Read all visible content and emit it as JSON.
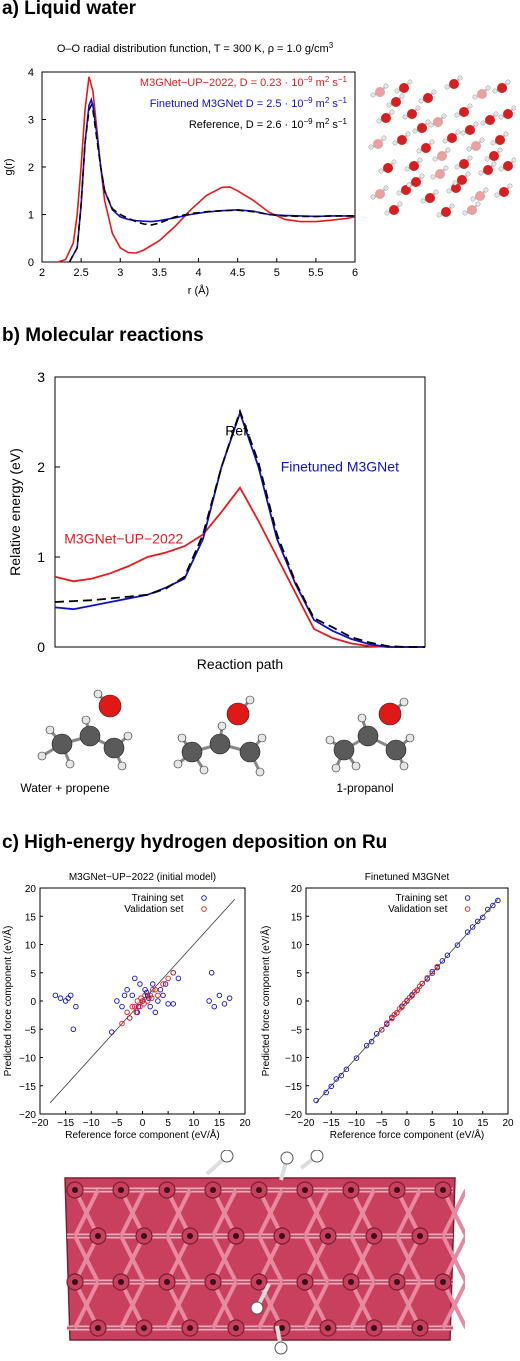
{
  "panels": {
    "a": {
      "heading": "a) Liquid water",
      "title": "O–O radial distribution function, T = 300 K, ρ = 1.0 g/cm",
      "title_sup": "3"
    },
    "b": {
      "heading": "b) Molecular reactions",
      "mol_left": "Water + propene",
      "mol_right": "1-propanol"
    },
    "c": {
      "heading": "c) High-energy hydrogen deposition on Ru"
    }
  },
  "colors": {
    "red": "#e41a1c",
    "blue": "#1010c8",
    "black": "#000000",
    "ru": "#c8405e",
    "ru_dark": "#7a1f33"
  },
  "chart_data": [
    {
      "id": "rdf",
      "type": "line",
      "title": "O–O radial distribution function, T = 300 K, ρ = 1.0 g/cm3",
      "xlabel": "r (Å)",
      "ylabel": "g(r)",
      "xlim": [
        2,
        6
      ],
      "ylim": [
        0,
        4
      ],
      "xticks": [
        "2",
        "2.5",
        "3",
        "3.5",
        "4",
        "4.5",
        "5",
        "5.5",
        "6"
      ],
      "yticks": [
        "0",
        "1",
        "2",
        "3",
        "4"
      ],
      "legend": [
        {
          "pre": "M3GNet−UP−2022, D = 0.23 · 10",
          "sup1": "−9",
          "mid": " m",
          "sup2": "2",
          "post": " s",
          "sup3": "−1",
          "color": "#e41a1c"
        },
        {
          "pre": "Finetuned M3GNet D = 2.5 · 10",
          "sup1": "−9",
          "mid": " m",
          "sup2": "2",
          "post": " s",
          "sup3": "−1",
          "color": "#1010c8"
        },
        {
          "pre": "Reference, D = 2.6 · 10",
          "sup1": "−9",
          "mid": " m",
          "sup2": "2",
          "post": " s",
          "sup3": "−1",
          "color": "#000000"
        }
      ],
      "series": [
        {
          "name": "M3GNet−UP−2022",
          "color": "#e41a1c",
          "dash": false,
          "x": [
            2.2,
            2.3,
            2.4,
            2.45,
            2.5,
            2.55,
            2.6,
            2.65,
            2.7,
            2.75,
            2.8,
            2.9,
            3.0,
            3.1,
            3.2,
            3.3,
            3.5,
            3.7,
            3.9,
            4.1,
            4.3,
            4.4,
            4.5,
            4.7,
            4.9,
            5.1,
            5.3,
            5.5,
            5.7,
            5.9,
            6.0
          ],
          "y": [
            0,
            0.05,
            0.4,
            1.0,
            2.0,
            3.2,
            3.9,
            3.6,
            2.8,
            2.0,
            1.3,
            0.6,
            0.3,
            0.2,
            0.19,
            0.25,
            0.45,
            0.75,
            1.1,
            1.4,
            1.57,
            1.58,
            1.5,
            1.3,
            1.05,
            0.9,
            0.85,
            0.85,
            0.88,
            0.92,
            0.95
          ]
        },
        {
          "name": "Finetuned M3GNet",
          "color": "#1010c8",
          "dash": false,
          "x": [
            2.35,
            2.45,
            2.5,
            2.55,
            2.6,
            2.63,
            2.65,
            2.7,
            2.75,
            2.8,
            2.9,
            3.0,
            3.1,
            3.2,
            3.3,
            3.4,
            3.5,
            3.7,
            3.9,
            4.1,
            4.3,
            4.5,
            4.7,
            4.9,
            5.1,
            5.3,
            5.5,
            5.7,
            5.9,
            6.0
          ],
          "y": [
            0,
            0.3,
            1.2,
            2.5,
            3.3,
            3.42,
            3.3,
            2.7,
            2.0,
            1.5,
            1.1,
            0.95,
            0.9,
            0.87,
            0.86,
            0.85,
            0.87,
            0.93,
            1.0,
            1.05,
            1.08,
            1.1,
            1.07,
            1.0,
            0.98,
            0.97,
            0.96,
            0.97,
            0.97,
            0.97
          ]
        },
        {
          "name": "Reference",
          "color": "#000000",
          "dash": true,
          "x": [
            2.35,
            2.45,
            2.5,
            2.55,
            2.6,
            2.63,
            2.65,
            2.7,
            2.75,
            2.8,
            2.9,
            3.0,
            3.1,
            3.2,
            3.3,
            3.4,
            3.5,
            3.7,
            3.9,
            4.1,
            4.3,
            4.5,
            4.7,
            4.9,
            5.1,
            5.3,
            5.5,
            5.7,
            5.9,
            6.0
          ],
          "y": [
            0,
            0.3,
            1.2,
            2.5,
            3.2,
            3.3,
            3.2,
            2.6,
            2.0,
            1.5,
            1.12,
            1.0,
            0.92,
            0.85,
            0.8,
            0.78,
            0.82,
            0.95,
            1.02,
            1.06,
            1.08,
            1.09,
            1.06,
            1.0,
            0.97,
            0.96,
            0.96,
            0.97,
            0.97,
            0.97
          ]
        }
      ]
    },
    {
      "id": "reaction",
      "type": "line",
      "xlabel": "Reaction path",
      "ylabel": "Relative energy (eV)",
      "xlim": [
        0,
        20
      ],
      "ylim": [
        0,
        3
      ],
      "yticks": [
        "0",
        "1",
        "2",
        "3"
      ],
      "labels": [
        {
          "text": "Ref.",
          "color": "#000000",
          "x": 9.2,
          "y": 2.35
        },
        {
          "text": "Finetuned M3GNet",
          "color": "#1010c8",
          "x": 12.2,
          "y": 1.95
        },
        {
          "text": "M3GNet−UP−2022",
          "color": "#e41a1c",
          "x": 0.5,
          "y": 1.15
        }
      ],
      "series": [
        {
          "name": "M3GNet−UP−2022",
          "color": "#e41a1c",
          "dash": false,
          "x": [
            0,
            1,
            2,
            3,
            4,
            5,
            6,
            7,
            8,
            9,
            10,
            11,
            12,
            13,
            14,
            15,
            16,
            17,
            18,
            19,
            20
          ],
          "y": [
            0.78,
            0.73,
            0.76,
            0.82,
            0.9,
            1.0,
            1.05,
            1.12,
            1.25,
            1.5,
            1.77,
            1.4,
            1.0,
            0.6,
            0.2,
            0.1,
            0.04,
            0.01,
            0,
            0,
            0
          ]
        },
        {
          "name": "Finetuned M3GNet",
          "color": "#1010c8",
          "dash": false,
          "x": [
            0,
            1,
            2,
            3,
            4,
            5,
            6,
            7,
            8,
            9,
            10,
            11,
            12,
            13,
            14,
            15,
            16,
            17,
            18,
            19,
            20
          ],
          "y": [
            0.44,
            0.42,
            0.46,
            0.5,
            0.54,
            0.58,
            0.66,
            0.76,
            1.2,
            2.0,
            2.6,
            2.0,
            1.2,
            0.7,
            0.3,
            0.18,
            0.09,
            0.03,
            0,
            0,
            0
          ]
        },
        {
          "name": "Reference",
          "color": "#000000",
          "dash": true,
          "x": [
            0,
            1,
            2,
            3,
            4,
            5,
            6,
            7,
            8,
            9,
            10,
            11,
            12,
            13,
            14,
            15,
            16,
            17,
            18,
            19,
            20
          ],
          "y": [
            0.5,
            0.51,
            0.52,
            0.54,
            0.56,
            0.58,
            0.65,
            0.78,
            1.25,
            2.0,
            2.62,
            2.05,
            1.25,
            0.72,
            0.32,
            0.22,
            0.11,
            0.05,
            0.01,
            0,
            0
          ]
        }
      ]
    },
    {
      "id": "parity-initial",
      "type": "scatter",
      "title": "M3GNet−UP−2022 (initial model)",
      "xlabel": "Reference force component (eV/Å)",
      "ylabel": "Predicted force component (eV/Å)",
      "xlim": [
        -20,
        20
      ],
      "ylim": [
        -20,
        20
      ],
      "xticks": [
        "−20",
        "−15",
        "−10",
        "−5",
        "0",
        "5",
        "10",
        "15",
        "20"
      ],
      "yticks": [
        "−20",
        "−15",
        "−10",
        "−5",
        "0",
        "5",
        "10",
        "15",
        "20"
      ],
      "legend": [
        "Training set",
        "Validation set"
      ],
      "series": [
        {
          "name": "Training set",
          "color": "#1010c8",
          "x": [
            -17,
            -16,
            -15,
            -14.5,
            -14,
            -13,
            -13.5,
            -5,
            -4,
            -3,
            -2,
            -1,
            -0.5,
            0,
            0.5,
            1,
            1.5,
            2,
            3,
            4,
            5,
            6,
            7,
            -2.5,
            2.5,
            -1.5,
            1.2,
            -0.8,
            0.8,
            3.5,
            -3.5,
            13,
            14,
            15,
            16,
            17,
            13.5,
            6,
            4.5,
            -6
          ],
          "y": [
            1,
            0.5,
            0,
            0.5,
            1,
            -1,
            -5,
            0,
            -1,
            2,
            1,
            -2,
            3,
            0,
            2,
            1,
            -1,
            3,
            0,
            1,
            -0.5,
            5,
            4,
            -3,
            -2,
            4,
            0.5,
            -1,
            1.5,
            2,
            1,
            0,
            -1,
            1,
            -0.5,
            0.5,
            5,
            -0.5,
            3,
            -5.5
          ]
        },
        {
          "name": "Validation set",
          "color": "#e41a1c",
          "x": [
            -4,
            -3,
            -2.5,
            -2,
            -1.5,
            -1,
            -0.5,
            0,
            0.5,
            1,
            1.5,
            2,
            2.5,
            3,
            4,
            5,
            6,
            -1.2,
            0.3,
            1.8,
            -0.3
          ],
          "y": [
            -4,
            -2,
            -3,
            -1,
            -1,
            0,
            -1,
            0,
            1,
            0,
            1,
            2,
            2,
            1,
            3,
            4,
            5,
            -2,
            -0.5,
            0.5,
            0.5
          ]
        }
      ]
    },
    {
      "id": "parity-finetuned",
      "type": "scatter",
      "title": "Finetuned M3GNet",
      "xlabel": "Reference force component (eV/Å)",
      "ylabel": "Predicted force component (eV/Å)",
      "xlim": [
        -20,
        20
      ],
      "ylim": [
        -20,
        20
      ],
      "xticks": [
        "−20",
        "−15",
        "−10",
        "−5",
        "0",
        "5",
        "10",
        "15",
        "20"
      ],
      "yticks": [
        "−20",
        "−15",
        "−10",
        "−5",
        "0",
        "5",
        "10",
        "15",
        "20"
      ],
      "legend": [
        "Training set",
        "Validation set"
      ],
      "series": [
        {
          "name": "Training set",
          "color": "#1010c8",
          "x": [
            -18,
            -16,
            -15,
            -14,
            -13,
            -12,
            -10,
            -8,
            -7,
            -6,
            -5,
            -4,
            -3,
            -2,
            -1,
            0,
            1,
            2,
            3,
            4,
            5,
            6,
            7,
            8,
            10,
            12,
            13,
            14,
            15,
            16,
            17,
            18
          ],
          "y": [
            -17.6,
            -16.2,
            -15.1,
            -13.8,
            -13.2,
            -12.1,
            -10.1,
            -7.9,
            -7.2,
            -5.8,
            -5.1,
            -4.1,
            -2.9,
            -2.1,
            -0.9,
            0,
            1.1,
            1.9,
            3.1,
            3.9,
            5.2,
            5.9,
            7.1,
            8.1,
            9.9,
            12.2,
            13.1,
            14.1,
            14.8,
            16.2,
            16.9,
            17.8
          ]
        },
        {
          "name": "Validation set",
          "color": "#e41a1c",
          "x": [
            -5,
            -4,
            -3,
            -2.5,
            -2,
            -1.5,
            -1,
            -0.5,
            0,
            0.5,
            1,
            1.5,
            2,
            2.5,
            3,
            4,
            5,
            6
          ],
          "y": [
            -5.1,
            -3.9,
            -3.1,
            -2.4,
            -2.1,
            -1.4,
            -1.1,
            -0.4,
            0.1,
            0.6,
            0.9,
            1.6,
            1.9,
            2.6,
            3.1,
            4.1,
            4.9,
            6.1
          ]
        }
      ]
    }
  ]
}
